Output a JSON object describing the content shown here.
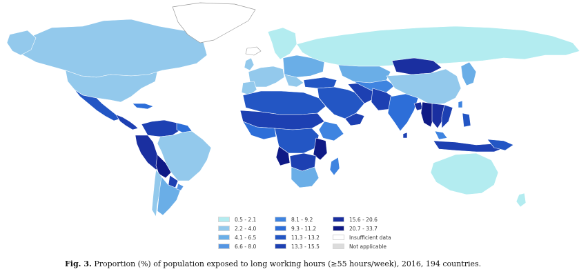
{
  "caption": {
    "prefix": "Fig. 3.",
    "text": "Proportion (%) of population exposed to long working hours (≥55 hours/week), 2016, 194 countries."
  },
  "legend": {
    "items": [
      {
        "label": "0.5 - 2.1",
        "color": "#b3ecf0"
      },
      {
        "label": "2.2 - 4.0",
        "color": "#93c9ec"
      },
      {
        "label": "4.1 - 6.5",
        "color": "#6aaee7"
      },
      {
        "label": "6.6 - 8.0",
        "color": "#5596e3"
      },
      {
        "label": "8.1 - 9.2",
        "color": "#3f84e0"
      },
      {
        "label": "9.3 - 11.2",
        "color": "#2d6ed8"
      },
      {
        "label": "11.3 - 13.2",
        "color": "#2356c4"
      },
      {
        "label": "13.3 - 15.5",
        "color": "#1d40b2"
      },
      {
        "label": "15.6 - 20.6",
        "color": "#1a2fa0"
      },
      {
        "label": "20.7 - 33.7",
        "color": "#0f1a86"
      },
      {
        "label": "Insufficient data",
        "color": "#ffffff"
      },
      {
        "label": "Not applicable",
        "color": "#dcdcdc"
      }
    ]
  },
  "colors": {
    "ocean": "#ffffff",
    "border": "#ffffff",
    "greenland_stroke": "#9a9a9a"
  }
}
